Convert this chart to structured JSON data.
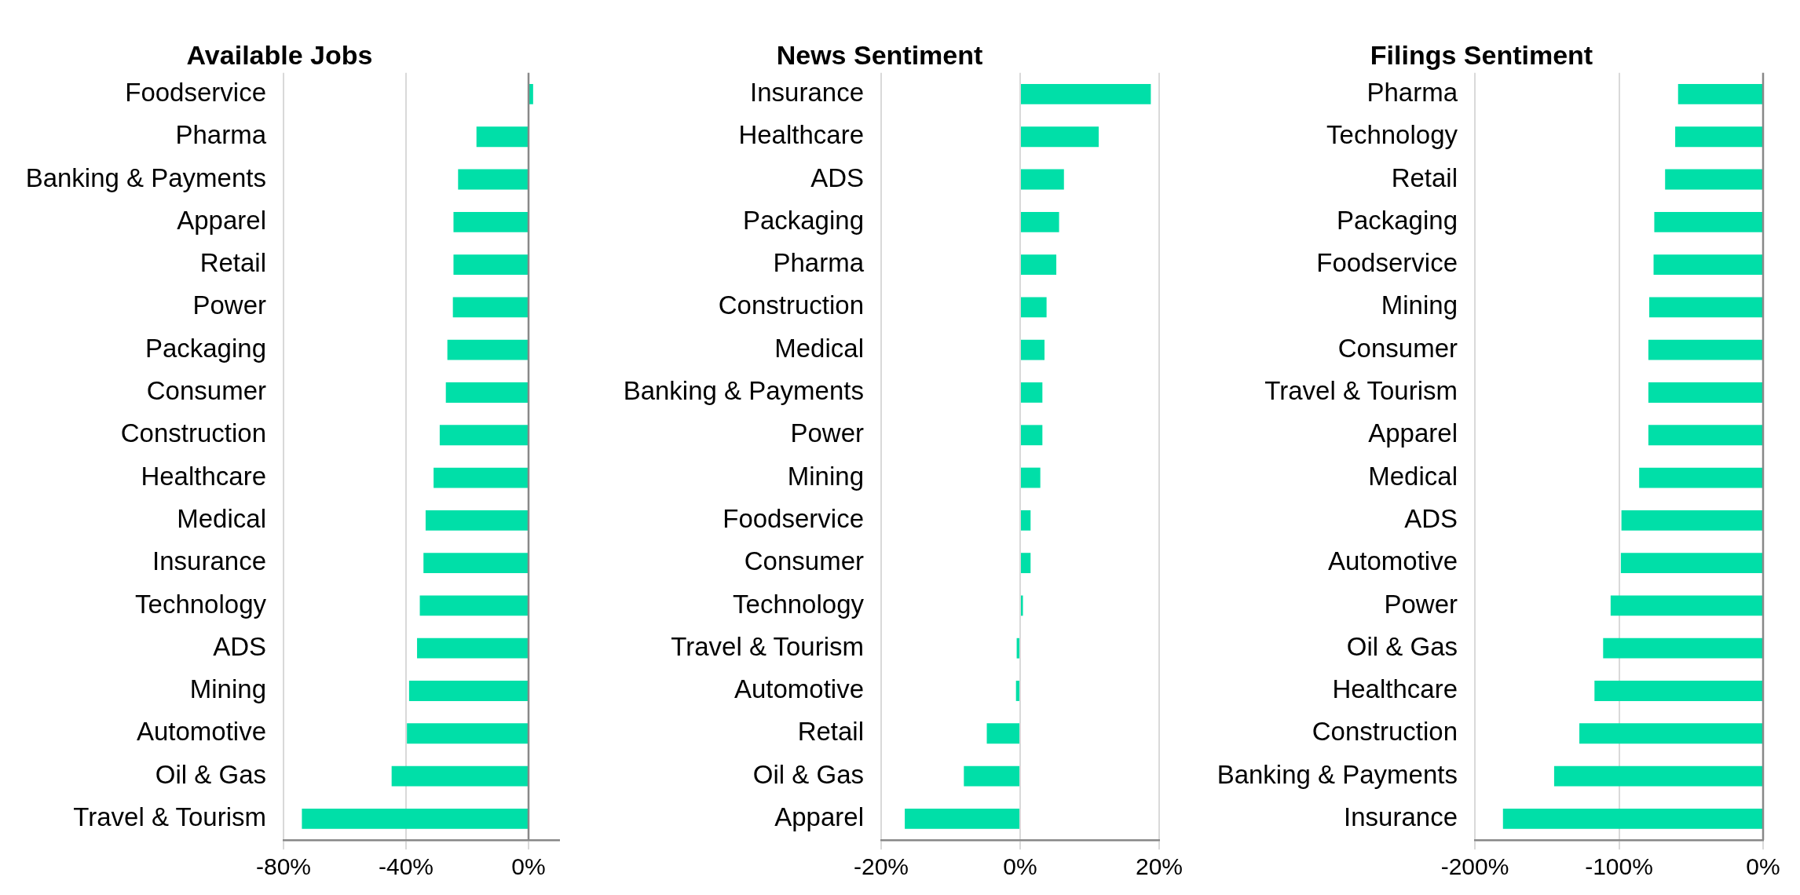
{
  "chart_data": [
    {
      "type": "bar",
      "orientation": "horizontal",
      "title": "Available Jobs",
      "categories": [
        "Foodservice",
        "Pharma",
        "Banking & Payments",
        "Apparel",
        "Retail",
        "Power",
        "Packaging",
        "Consumer",
        "Construction",
        "Healthcare",
        "Medical",
        "Insurance",
        "Technology",
        "ADS",
        "Mining",
        "Automotive",
        "Oil & Gas",
        "Travel & Tourism"
      ],
      "values": [
        1.5,
        -17,
        -23,
        -24.5,
        -24.5,
        -24.7,
        -26.5,
        -27,
        -29,
        -31,
        -33.6,
        -34.3,
        -35.5,
        -36.4,
        -39,
        -39.7,
        -44.7,
        -74
      ],
      "color": "#00dfa8",
      "xlim": [
        -80,
        10
      ],
      "xticks": [
        {
          "value": -80,
          "label": "-80%"
        },
        {
          "value": -40,
          "label": "-40%"
        },
        {
          "value": 0,
          "label": "0%"
        }
      ],
      "grid": "x",
      "ref_lines": [
        {
          "axis": "x",
          "value": 0,
          "color": "#888888"
        }
      ]
    },
    {
      "type": "bar",
      "orientation": "horizontal",
      "title": "News Sentiment",
      "categories": [
        "Insurance",
        "Healthcare",
        "ADS",
        "Packaging",
        "Pharma",
        "Construction",
        "Medical",
        "Banking & Payments",
        "Power",
        "Mining",
        "Foodservice",
        "Consumer",
        "Technology",
        "Travel & Tourism",
        "Automotive",
        "Retail",
        "Oil & Gas",
        "Apparel"
      ],
      "values": [
        18.8,
        11.3,
        6.3,
        5.6,
        5.2,
        3.8,
        3.5,
        3.2,
        3.2,
        2.9,
        1.5,
        1.5,
        0.4,
        -0.5,
        -0.6,
        -4.8,
        -8.1,
        -16.6
      ],
      "color": "#00dfa8",
      "xlim": [
        -20,
        20
      ],
      "xticks": [
        {
          "value": -20,
          "label": "-20%"
        },
        {
          "value": 0,
          "label": "0%"
        },
        {
          "value": 20,
          "label": "20%"
        }
      ],
      "grid": "x"
    },
    {
      "type": "bar",
      "orientation": "horizontal",
      "title": "Filings Sentiment",
      "categories": [
        "Pharma",
        "Technology",
        "Retail",
        "Packaging",
        "Foodservice",
        "Mining",
        "Consumer",
        "Travel & Tourism",
        "Apparel",
        "Medical",
        "ADS",
        "Automotive",
        "Power",
        "Oil & Gas",
        "Healthcare",
        "Construction",
        "Banking & Payments",
        "Insurance"
      ],
      "values": [
        -59,
        -61,
        -68,
        -75.5,
        -76,
        -79,
        -79.6,
        -79.6,
        -79.6,
        -86,
        -98.3,
        -98.7,
        -105.8,
        -111,
        -117,
        -127.5,
        -145,
        -180.5
      ],
      "color": "#00dfa8",
      "xlim": [
        -200,
        0
      ],
      "xticks": [
        {
          "value": -200,
          "label": "-200%"
        },
        {
          "value": -100,
          "label": "-100%"
        },
        {
          "value": 0,
          "label": "0%"
        }
      ],
      "grid": "x",
      "ref_lines": [
        {
          "axis": "x",
          "value": 0,
          "color": "#888888"
        }
      ]
    }
  ]
}
